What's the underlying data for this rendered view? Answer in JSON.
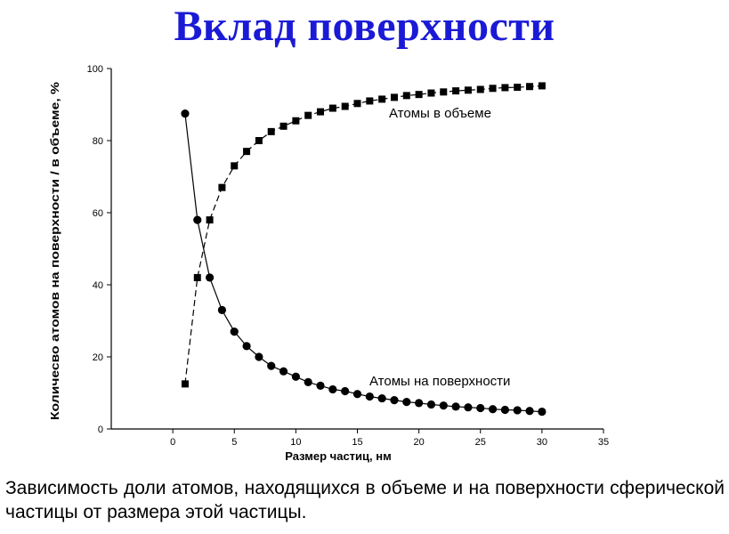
{
  "slide": {
    "title": "Вклад поверхности",
    "caption": "Зависимость доли атомов, находящихся в объеме и на поверхности сферической частицы от размера этой частицы."
  },
  "chart_data": {
    "type": "line",
    "title": "",
    "xlabel": "Размер  частиц, нм",
    "ylabel": "Количесво атомов на поверхности / в объеме, %",
    "xlim": [
      -5,
      35
    ],
    "ylim": [
      0,
      100
    ],
    "xticks": [
      0,
      5,
      10,
      15,
      20,
      25,
      30,
      35
    ],
    "yticks": [
      0,
      20,
      40,
      60,
      80,
      100
    ],
    "grid": false,
    "legend": "none",
    "series": [
      {
        "name": "Атомы в объеме",
        "marker": "square",
        "line_style": "dashed",
        "color": "#000000",
        "x": [
          1,
          2,
          3,
          4,
          5,
          6,
          7,
          8,
          9,
          10,
          11,
          12,
          13,
          14,
          15,
          16,
          17,
          18,
          19,
          20,
          21,
          22,
          23,
          24,
          25,
          26,
          27,
          28,
          29,
          30
        ],
        "y": [
          12.5,
          42,
          58,
          67,
          73,
          77,
          80,
          82.5,
          84,
          85.5,
          87,
          88,
          89,
          89.5,
          90.3,
          91,
          91.5,
          92,
          92.5,
          92.8,
          93.2,
          93.5,
          93.8,
          94,
          94.2,
          94.5,
          94.7,
          94.8,
          95,
          95.2
        ]
      },
      {
        "name": "Атомы на поверхности",
        "marker": "circle",
        "line_style": "solid",
        "color": "#000000",
        "x": [
          1,
          2,
          3,
          4,
          5,
          6,
          7,
          8,
          9,
          10,
          11,
          12,
          13,
          14,
          15,
          16,
          17,
          18,
          19,
          20,
          21,
          22,
          23,
          24,
          25,
          26,
          27,
          28,
          29,
          30
        ],
        "y": [
          87.5,
          58,
          42,
          33,
          27,
          23,
          20,
          17.5,
          16,
          14.5,
          13,
          12,
          11,
          10.5,
          9.7,
          9,
          8.5,
          8,
          7.5,
          7.2,
          6.8,
          6.5,
          6.2,
          6,
          5.8,
          5.5,
          5.3,
          5.2,
          5,
          4.8
        ]
      }
    ]
  }
}
